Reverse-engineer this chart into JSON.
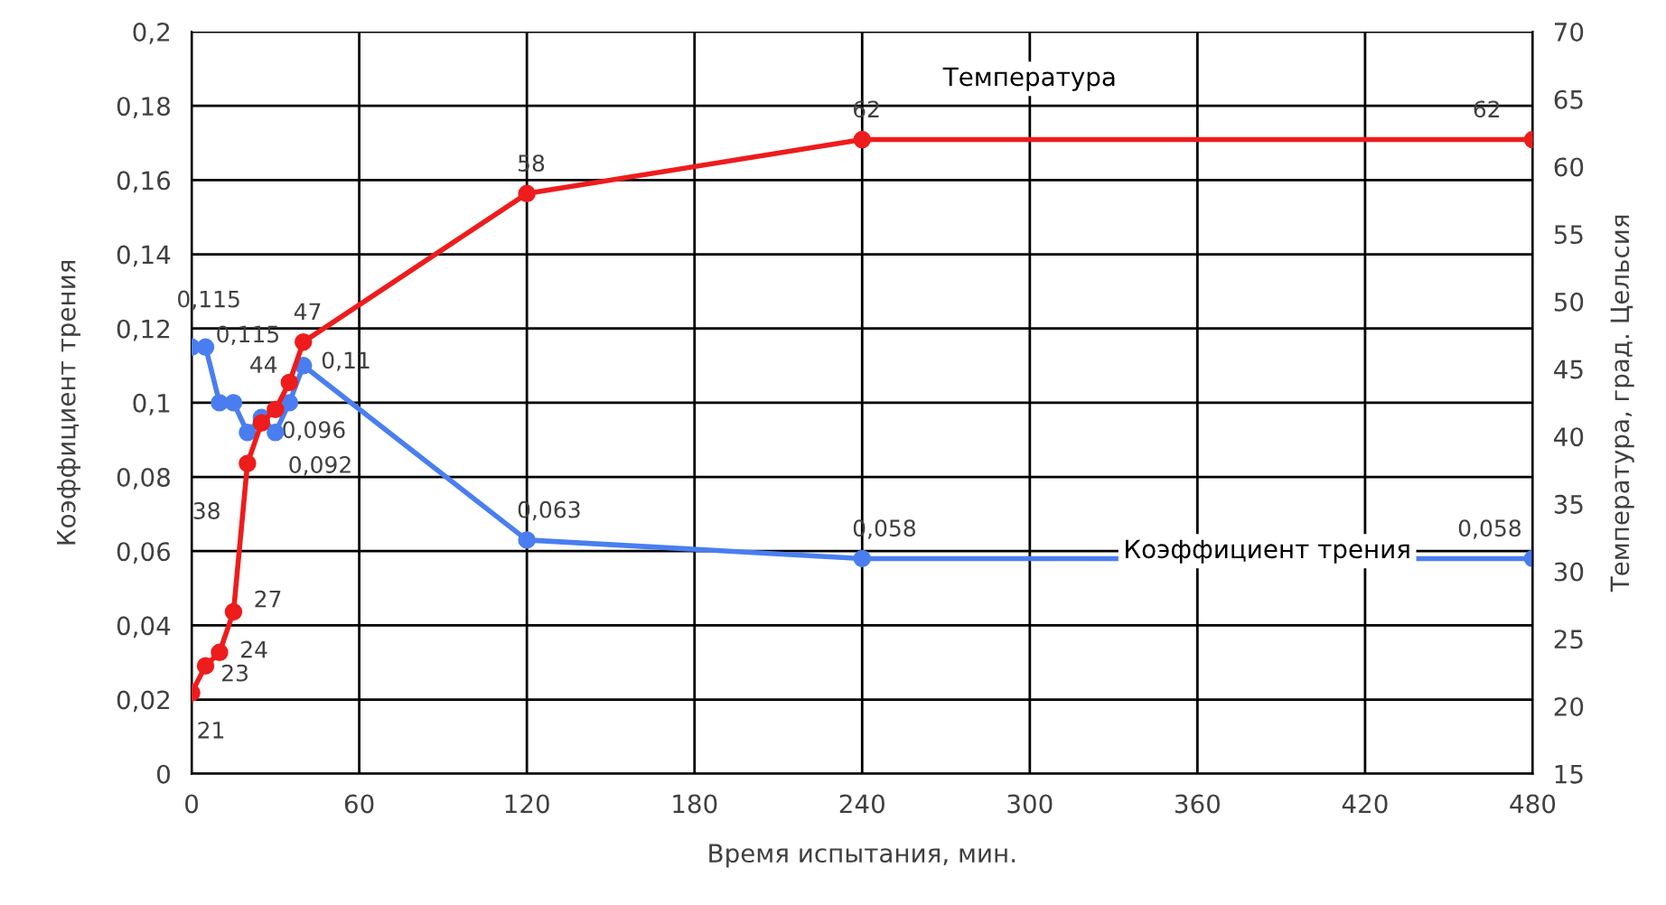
{
  "chart_data": {
    "type": "line",
    "xlabel": "Время испытания, мин.",
    "ylabel": "Коэффициент трения",
    "y2label": "Температура, град. Цельсия",
    "xlim": [
      0,
      480
    ],
    "xticks": [
      0,
      60,
      120,
      180,
      240,
      300,
      360,
      420,
      480
    ],
    "ylim": [
      0,
      0.2
    ],
    "yticks": [
      0,
      {
        "value": 0.02,
        "label": "0,02"
      },
      {
        "value": 0.04,
        "label": "0,04"
      },
      {
        "value": 0.06,
        "label": "0,06"
      },
      {
        "value": 0.08,
        "label": "0,08"
      },
      {
        "value": 0.1,
        "label": "0,1"
      },
      {
        "value": 0.12,
        "label": "0,12"
      },
      {
        "value": 0.14,
        "label": "0,14"
      },
      {
        "value": 0.16,
        "label": "0,16"
      },
      {
        "value": 0.18,
        "label": "0,18"
      },
      {
        "value": 0.2,
        "label": "0,2"
      }
    ],
    "y2lim": [
      15,
      70
    ],
    "y2ticks": [
      15,
      20,
      25,
      30,
      35,
      40,
      45,
      50,
      55,
      60,
      65,
      70
    ],
    "grid": true,
    "legend": false,
    "marker": "circle",
    "line_style": "solid",
    "series": [
      {
        "name": "Коэффициент трения",
        "color": "#4a7ef0",
        "x": [
          0,
          5,
          10,
          15,
          20,
          25,
          30,
          35,
          40,
          120,
          240,
          480
        ],
        "values": [
          0.115,
          0.115,
          0.1,
          0.1,
          0.092,
          0.096,
          0.092,
          0.1,
          0.11,
          0.063,
          0.058,
          0.058
        ],
        "value_labels": [
          "0,115",
          "0,115",
          null,
          null,
          null,
          "0,096",
          "0,092",
          null,
          "0,11",
          "0,063",
          "0,058",
          "0,058"
        ]
      },
      {
        "name": "Температура",
        "color": "#ee1c1c",
        "axis": "y2",
        "x": [
          0,
          5,
          10,
          15,
          20,
          25,
          30,
          35,
          40,
          120,
          240,
          480
        ],
        "values": [
          21,
          23,
          24,
          27,
          38,
          41,
          42,
          44,
          47,
          58,
          62,
          62
        ],
        "value_labels": [
          "21",
          "23",
          "24",
          "27",
          "38",
          null,
          null,
          "44",
          "47",
          "58",
          "62",
          "62"
        ]
      }
    ]
  }
}
